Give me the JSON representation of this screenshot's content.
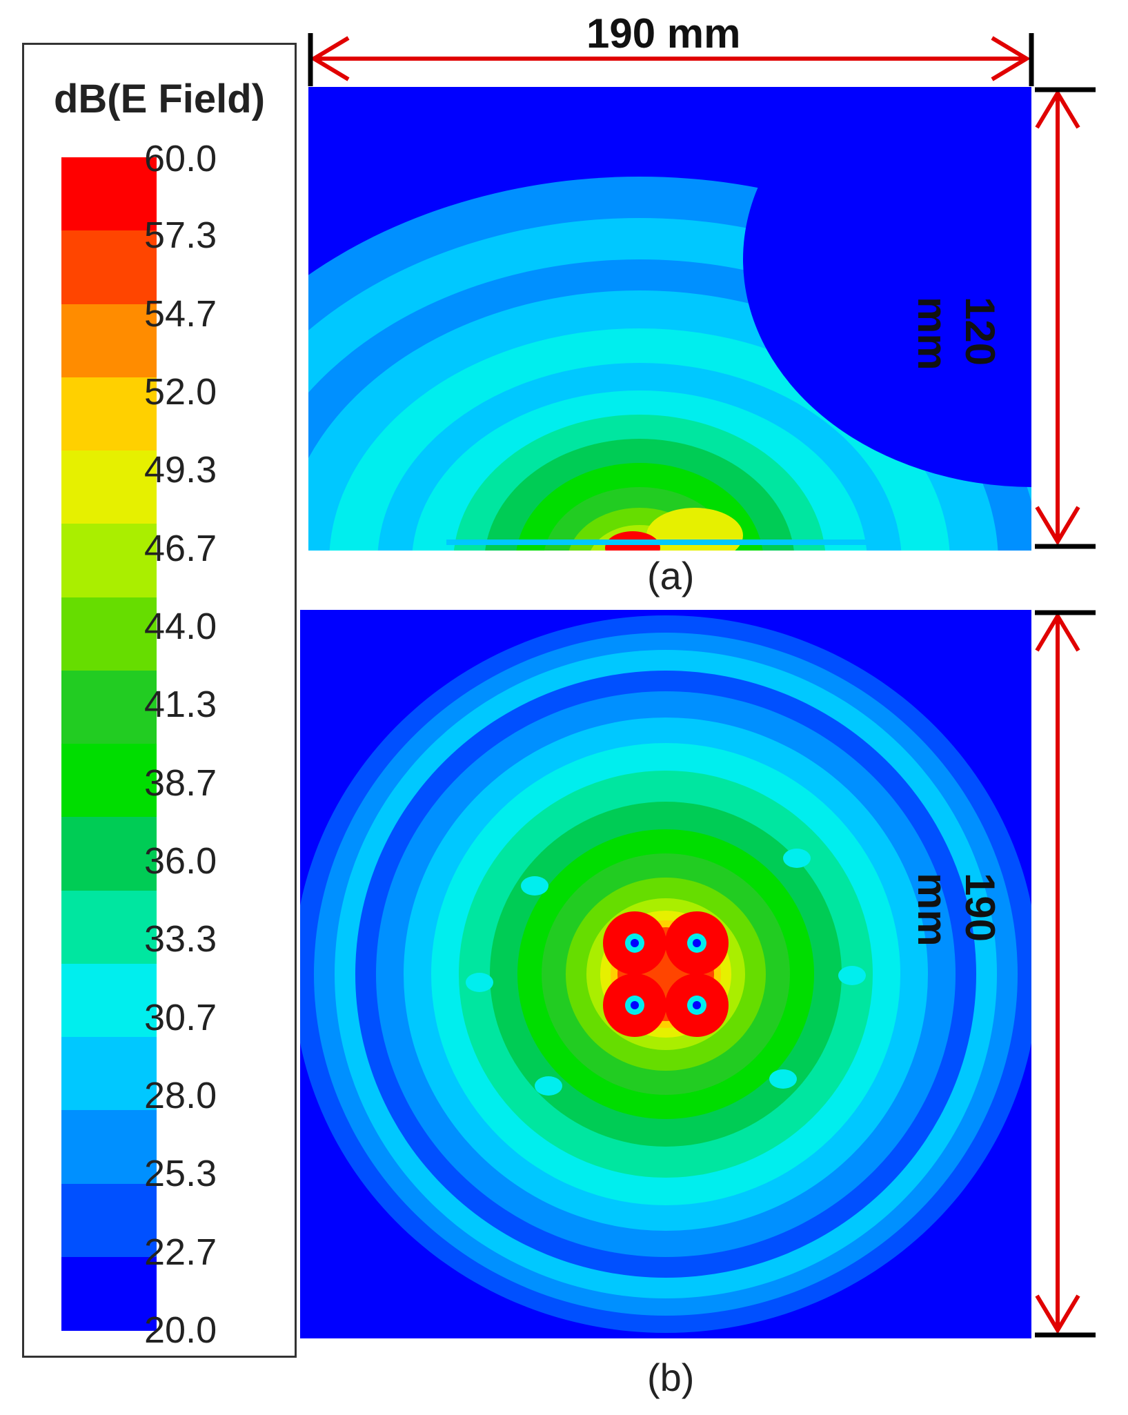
{
  "legend": {
    "title": "dB(E Field)",
    "ticks": [
      "60.0",
      "57.3",
      "54.7",
      "52.0",
      "49.3",
      "46.7",
      "44.0",
      "41.3",
      "38.7",
      "36.0",
      "33.3",
      "30.7",
      "28.0",
      "25.3",
      "22.7",
      "20.0"
    ],
    "colors": [
      "#ff0000",
      "#ff4500",
      "#ff8c00",
      "#ffd000",
      "#e6f000",
      "#aaee00",
      "#66dd00",
      "#22cc22",
      "#00dd00",
      "#00cc55",
      "#00e6a0",
      "#00eeee",
      "#00c8ff",
      "#0090ff",
      "#0050ff",
      "#0000ff"
    ]
  },
  "panel_a": {
    "caption": "(a)",
    "width_label": "190 mm",
    "height_label": "120 mm"
  },
  "panel_b": {
    "caption": "(b)",
    "height_label": "190 mm"
  }
}
